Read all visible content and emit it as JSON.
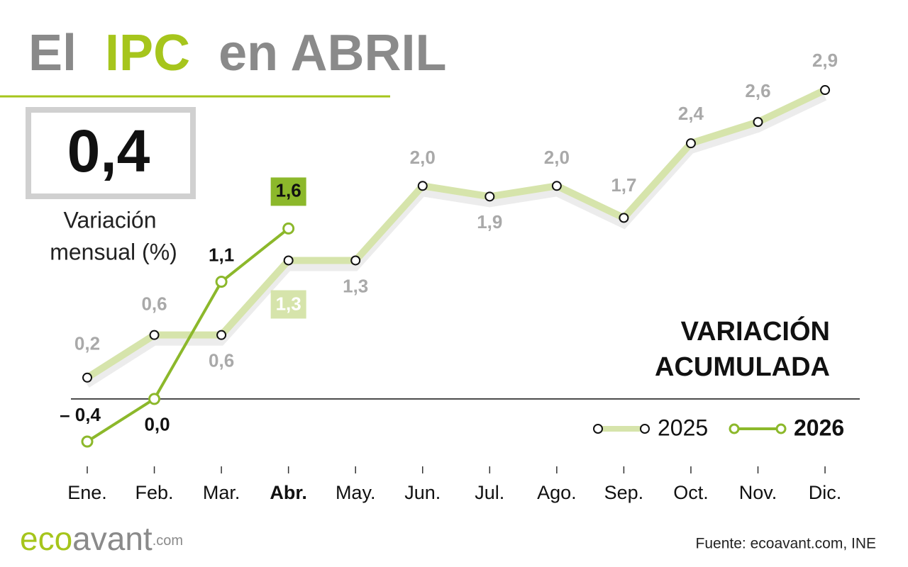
{
  "chart_data": {
    "type": "line",
    "title": [
      "El",
      "IPC",
      "en ABRIL"
    ],
    "headline": {
      "value": 0.4,
      "label": "0,4"
    },
    "headline_caption": [
      "Variación",
      "mensual (%)"
    ],
    "annotation": [
      "VARIACIÓN",
      "ACUMULADA"
    ],
    "categories": [
      "Ene.",
      "Feb.",
      "Mar.",
      "Abr.",
      "May.",
      "Jun.",
      "Jul.",
      "Ago.",
      "Sep.",
      "Oct.",
      "Nov.",
      "Dic."
    ],
    "highlight_category": 3,
    "ylim": [
      -0.5,
      3
    ],
    "series": [
      {
        "name": "2025",
        "color": "#d6e4ab",
        "values": [
          0.2,
          0.6,
          0.6,
          1.3,
          1.3,
          2.0,
          1.9,
          2.0,
          1.7,
          2.4,
          2.6,
          2.9
        ],
        "value_labels": [
          "0,2",
          "0,6",
          "0,6",
          "1,3",
          "1,3",
          "2,0",
          "1,9",
          "2,0",
          "1,7",
          "2,4",
          "2,6",
          "2,9"
        ]
      },
      {
        "name": "2026",
        "color": "#8cb82b",
        "values": [
          -0.4,
          0.0,
          1.1,
          1.6,
          null,
          null,
          null,
          null,
          null,
          null,
          null,
          null
        ],
        "value_labels": [
          "– 0,4",
          "0,0",
          "1,1",
          "1,6",
          null,
          null,
          null,
          null,
          null,
          null,
          null,
          null
        ]
      }
    ],
    "source": "Fuente: ecoavant.com, INE",
    "logo": [
      "eco",
      "avant",
      ".com"
    ]
  }
}
